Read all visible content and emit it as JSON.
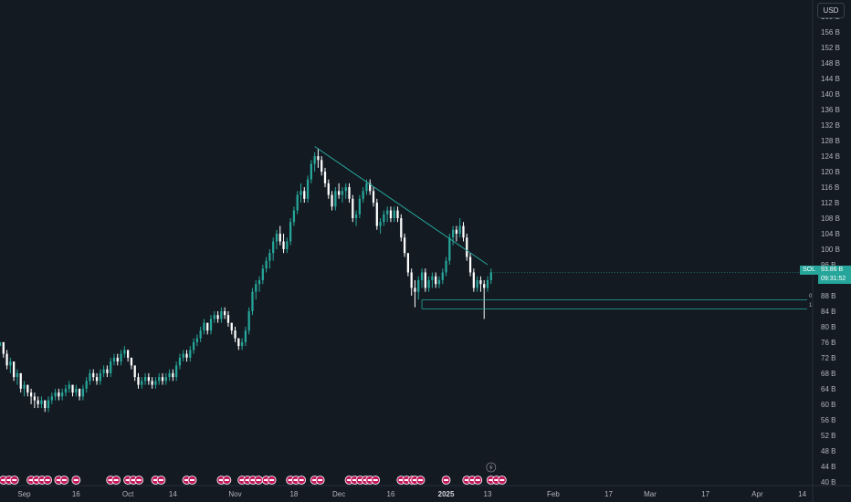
{
  "currency_label": "USD",
  "symbol": "SOL",
  "current_price": "93.86 B",
  "countdown": "09:31:52",
  "fib_levels": [
    {
      "label": "0",
      "value": 86.9
    },
    {
      "label": "1",
      "value": 84.6
    }
  ],
  "colors": {
    "bg": "#131a22",
    "up": "#26a69a",
    "down": "#ffffff",
    "trendline": "#26a69a",
    "event_badge": "#c2185b"
  },
  "chart_data": {
    "type": "candlestick",
    "yaxis": {
      "ticks": [
        "40 B",
        "44 B",
        "48 B",
        "52 B",
        "56 B",
        "60 B",
        "64 B",
        "68 B",
        "72 B",
        "76 B",
        "80 B",
        "84 B",
        "88 B",
        "92 B",
        "96 B",
        "100 B",
        "104 B",
        "108 B",
        "112 B",
        "116 B",
        "120 B",
        "124 B",
        "128 B",
        "132 B",
        "136 B",
        "140 B",
        "144 B",
        "148 B",
        "152 B",
        "156 B",
        "160 B"
      ],
      "range": [
        39,
        161
      ]
    },
    "xaxis": {
      "ticks": [
        {
          "label": "Sep",
          "day": 0
        },
        {
          "label": "16",
          "day": 15
        },
        {
          "label": "Oct",
          "day": 30
        },
        {
          "label": "14",
          "day": 43
        },
        {
          "label": "Nov",
          "day": 61
        },
        {
          "label": "18",
          "day": 78
        },
        {
          "label": "Dec",
          "day": 91
        },
        {
          "label": "16",
          "day": 106
        },
        {
          "label": "2025",
          "day": 122,
          "bold": true
        },
        {
          "label": "13",
          "day": 134
        },
        {
          "label": "Feb",
          "day": 153
        },
        {
          "label": "17",
          "day": 169
        },
        {
          "label": "Mar",
          "day": 181
        },
        {
          "label": "17",
          "day": 197
        },
        {
          "label": "Apr",
          "day": 212
        },
        {
          "label": "14",
          "day": 225
        }
      ],
      "range": [
        -7,
        228
      ]
    },
    "candles": [
      [
        -7,
        75,
        76,
        75,
        76
      ],
      [
        -6,
        76,
        76,
        72,
        73
      ],
      [
        -5,
        73,
        74,
        69,
        70
      ],
      [
        -4,
        70,
        72,
        68,
        71
      ],
      [
        -3,
        71,
        71,
        66,
        67
      ],
      [
        -2,
        67,
        69,
        65,
        68
      ],
      [
        -1,
        68,
        68,
        63,
        64
      ],
      [
        0,
        64,
        66,
        62,
        65
      ],
      [
        1,
        65,
        65,
        62,
        63
      ],
      [
        2,
        63,
        64,
        60,
        62
      ],
      [
        3,
        62,
        63,
        59,
        61
      ],
      [
        4,
        61,
        62,
        59,
        60
      ],
      [
        5,
        60,
        62,
        59,
        61
      ],
      [
        6,
        61,
        61,
        58,
        59
      ],
      [
        7,
        59,
        62,
        58,
        61
      ],
      [
        8,
        61,
        63,
        60,
        62
      ],
      [
        9,
        62,
        64,
        61,
        63
      ],
      [
        10,
        63,
        64,
        61,
        62
      ],
      [
        11,
        62,
        64,
        61,
        63
      ],
      [
        12,
        63,
        65,
        62,
        64
      ],
      [
        13,
        64,
        66,
        63,
        65
      ],
      [
        14,
        65,
        65,
        62,
        63
      ],
      [
        15,
        63,
        65,
        62,
        64
      ],
      [
        16,
        64,
        64,
        61,
        62
      ],
      [
        17,
        62,
        65,
        61,
        64
      ],
      [
        18,
        64,
        67,
        63,
        66
      ],
      [
        19,
        66,
        69,
        65,
        68
      ],
      [
        20,
        68,
        69,
        66,
        67
      ],
      [
        21,
        67,
        68,
        65,
        66
      ],
      [
        22,
        66,
        69,
        65,
        68
      ],
      [
        23,
        68,
        70,
        67,
        69
      ],
      [
        24,
        69,
        70,
        67,
        68
      ],
      [
        25,
        68,
        72,
        67,
        71
      ],
      [
        26,
        71,
        73,
        70,
        72
      ],
      [
        27,
        72,
        73,
        70,
        71
      ],
      [
        28,
        71,
        74,
        70,
        73
      ],
      [
        29,
        73,
        75,
        72,
        74
      ],
      [
        30,
        74,
        74,
        71,
        72
      ],
      [
        31,
        72,
        72,
        69,
        70
      ],
      [
        32,
        70,
        70,
        66,
        67
      ],
      [
        33,
        67,
        68,
        64,
        65
      ],
      [
        34,
        65,
        67,
        64,
        66
      ],
      [
        35,
        66,
        68,
        65,
        67
      ],
      [
        36,
        67,
        68,
        65,
        66
      ],
      [
        37,
        66,
        67,
        64,
        65
      ],
      [
        38,
        65,
        67,
        64,
        66
      ],
      [
        39,
        66,
        68,
        65,
        67
      ],
      [
        40,
        67,
        68,
        65,
        66
      ],
      [
        41,
        66,
        68,
        65,
        67
      ],
      [
        42,
        67,
        69,
        66,
        68
      ],
      [
        43,
        68,
        69,
        66,
        67
      ],
      [
        44,
        67,
        71,
        66,
        70
      ],
      [
        45,
        70,
        73,
        69,
        72
      ],
      [
        46,
        72,
        74,
        71,
        73
      ],
      [
        47,
        73,
        74,
        71,
        72
      ],
      [
        48,
        72,
        75,
        71,
        74
      ],
      [
        49,
        74,
        77,
        73,
        76
      ],
      [
        50,
        76,
        78,
        75,
        77
      ],
      [
        51,
        77,
        80,
        76,
        79
      ],
      [
        52,
        79,
        82,
        78,
        81
      ],
      [
        53,
        81,
        81,
        78,
        79
      ],
      [
        54,
        79,
        83,
        78,
        82
      ],
      [
        55,
        82,
        84,
        81,
        83
      ],
      [
        56,
        83,
        84,
        81,
        82
      ],
      [
        57,
        82,
        85,
        81,
        84
      ],
      [
        58,
        84,
        85,
        82,
        83
      ],
      [
        59,
        83,
        84,
        80,
        81
      ],
      [
        60,
        81,
        81,
        78,
        79
      ],
      [
        61,
        79,
        80,
        76,
        77
      ],
      [
        62,
        77,
        77,
        74,
        75
      ],
      [
        63,
        75,
        77,
        74,
        76
      ],
      [
        64,
        76,
        80,
        75,
        79
      ],
      [
        65,
        79,
        85,
        78,
        84
      ],
      [
        66,
        84,
        90,
        83,
        89
      ],
      [
        67,
        89,
        92,
        87,
        91
      ],
      [
        68,
        91,
        93,
        89,
        92
      ],
      [
        69,
        92,
        96,
        91,
        95
      ],
      [
        70,
        95,
        98,
        94,
        97
      ],
      [
        71,
        97,
        100,
        95,
        99
      ],
      [
        72,
        99,
        103,
        97,
        102
      ],
      [
        73,
        102,
        105,
        100,
        104
      ],
      [
        74,
        104,
        106,
        101,
        102
      ],
      [
        75,
        102,
        104,
        99,
        100
      ],
      [
        76,
        100,
        103,
        99,
        102
      ],
      [
        77,
        102,
        108,
        101,
        107
      ],
      [
        78,
        107,
        111,
        106,
        110
      ],
      [
        79,
        110,
        115,
        109,
        114
      ],
      [
        80,
        114,
        117,
        112,
        115
      ],
      [
        81,
        115,
        116,
        112,
        113
      ],
      [
        82,
        113,
        119,
        112,
        118
      ],
      [
        83,
        118,
        123,
        117,
        122
      ],
      [
        84,
        122,
        125,
        120,
        124
      ],
      [
        85,
        124,
        126,
        121,
        123
      ],
      [
        86,
        123,
        124,
        119,
        120
      ],
      [
        87,
        120,
        121,
        116,
        117
      ],
      [
        88,
        117,
        118,
        113,
        114
      ],
      [
        89,
        114,
        115,
        110,
        111
      ],
      [
        90,
        111,
        116,
        110,
        115
      ],
      [
        91,
        115,
        117,
        113,
        114
      ],
      [
        92,
        114,
        116,
        112,
        115
      ],
      [
        93,
        115,
        117,
        113,
        116
      ],
      [
        94,
        116,
        117,
        112,
        113
      ],
      [
        95,
        113,
        114,
        107,
        108
      ],
      [
        96,
        108,
        110,
        106,
        109
      ],
      [
        97,
        109,
        114,
        108,
        113
      ],
      [
        98,
        113,
        116,
        112,
        115
      ],
      [
        99,
        115,
        118,
        114,
        117
      ],
      [
        100,
        117,
        118,
        114,
        115
      ],
      [
        101,
        115,
        116,
        111,
        112
      ],
      [
        102,
        112,
        113,
        105,
        106
      ],
      [
        103,
        106,
        108,
        104,
        107
      ],
      [
        104,
        107,
        110,
        106,
        109
      ],
      [
        105,
        109,
        111,
        107,
        110
      ],
      [
        106,
        110,
        111,
        107,
        108
      ],
      [
        107,
        108,
        111,
        107,
        110
      ],
      [
        108,
        110,
        111,
        107,
        108
      ],
      [
        109,
        108,
        109,
        102,
        103
      ],
      [
        110,
        103,
        104,
        98,
        99
      ],
      [
        111,
        99,
        99,
        93,
        94
      ],
      [
        112,
        94,
        95,
        88,
        90
      ],
      [
        113,
        90,
        92,
        85,
        89
      ],
      [
        114,
        89,
        93,
        87,
        92
      ],
      [
        115,
        92,
        95,
        90,
        94
      ],
      [
        116,
        94,
        95,
        89,
        90
      ],
      [
        117,
        90,
        93,
        89,
        92
      ],
      [
        118,
        92,
        94,
        90,
        93
      ],
      [
        119,
        93,
        94,
        90,
        91
      ],
      [
        120,
        91,
        93,
        90,
        92
      ],
      [
        121,
        92,
        95,
        91,
        94
      ],
      [
        122,
        94,
        98,
        93,
        97
      ],
      [
        123,
        97,
        104,
        96,
        103
      ],
      [
        124,
        103,
        106,
        101,
        105
      ],
      [
        125,
        105,
        106,
        102,
        104
      ],
      [
        126,
        104,
        108,
        103,
        106
      ],
      [
        127,
        106,
        107,
        102,
        103
      ],
      [
        128,
        103,
        104,
        97,
        98
      ],
      [
        129,
        98,
        99,
        93,
        94
      ],
      [
        130,
        94,
        95,
        89,
        90
      ],
      [
        131,
        90,
        93,
        89,
        92
      ],
      [
        132,
        92,
        93,
        89,
        91
      ],
      [
        133,
        91,
        92,
        82,
        90
      ],
      [
        134,
        90,
        93,
        89,
        92
      ],
      [
        135,
        92,
        95,
        91,
        94
      ]
    ],
    "trendline": {
      "from": [
        84,
        126.5
      ],
      "to": [
        134,
        96
      ]
    },
    "fib_box": {
      "x_from": 115,
      "x_to": 228,
      "top": 86.9,
      "bottom": 84.6
    }
  },
  "events": [
    {
      "day": -6,
      "count": 3
    },
    {
      "day": 2,
      "count": 4
    },
    {
      "day": 10,
      "count": 2
    },
    {
      "day": 15,
      "count": 1
    },
    {
      "day": 25,
      "count": 2
    },
    {
      "day": 30,
      "count": 3
    },
    {
      "day": 38,
      "count": 2
    },
    {
      "day": 47,
      "count": 2
    },
    {
      "day": 57,
      "count": 2
    },
    {
      "day": 63,
      "count": 4
    },
    {
      "day": 70,
      "count": 2
    },
    {
      "day": 77,
      "count": 3
    },
    {
      "day": 84,
      "count": 2
    },
    {
      "day": 94,
      "count": 4
    },
    {
      "day": 100,
      "count": 2
    },
    {
      "day": 109,
      "count": 3
    },
    {
      "day": 113,
      "count": 2
    },
    {
      "day": 122,
      "count": 1
    },
    {
      "day": 128,
      "count": 3
    },
    {
      "day": 135,
      "count": 3
    }
  ]
}
